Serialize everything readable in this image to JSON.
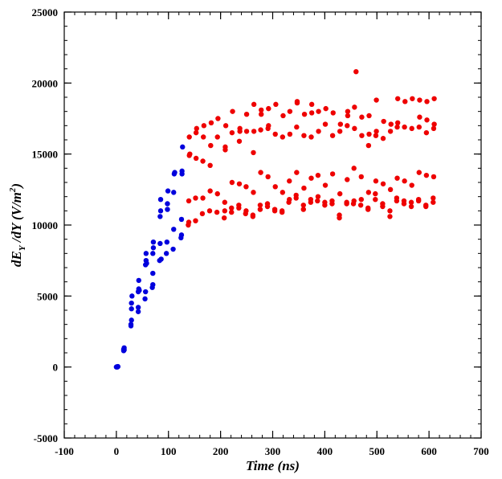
{
  "chart_data": {
    "type": "scatter",
    "title": "",
    "xlabel": "Time (ns)",
    "ylabel_parts": {
      "base": "dE",
      "sub": "Y",
      "mid": " /dY (V/m",
      "sup": "2",
      "end": ")"
    },
    "xlim": [
      -100,
      700
    ],
    "ylim": [
      -5000,
      25000
    ],
    "x_ticks": [
      -100,
      0,
      100,
      200,
      300,
      400,
      500,
      600,
      700
    ],
    "y_ticks": [
      -5000,
      0,
      5000,
      10000,
      15000,
      20000,
      25000
    ],
    "x_minor_step": 20,
    "y_minor_step": 1000,
    "grid": false,
    "legend": "none",
    "series": [
      {
        "color": "#0000dd",
        "points": [
          [
            0,
            0
          ],
          [
            1,
            20
          ],
          [
            2,
            0
          ],
          [
            3,
            30
          ],
          [
            14,
            1150
          ],
          [
            14,
            1250
          ],
          [
            15,
            1350
          ],
          [
            15,
            1200
          ],
          [
            28,
            2900
          ],
          [
            29,
            3300
          ],
          [
            29,
            4100
          ],
          [
            29,
            4500
          ],
          [
            30,
            5000
          ],
          [
            28,
            3000
          ],
          [
            42,
            3900
          ],
          [
            42,
            4200
          ],
          [
            42,
            5300
          ],
          [
            43,
            5500
          ],
          [
            43,
            6100
          ],
          [
            44,
            5400
          ],
          [
            55,
            4800
          ],
          [
            56,
            5300
          ],
          [
            56,
            7200
          ],
          [
            57,
            7500
          ],
          [
            57,
            8000
          ],
          [
            58,
            7300
          ],
          [
            69,
            5600
          ],
          [
            70,
            5800
          ],
          [
            70,
            6600
          ],
          [
            70,
            8000
          ],
          [
            71,
            8400
          ],
          [
            71,
            8800
          ],
          [
            83,
            7500
          ],
          [
            84,
            8700
          ],
          [
            84,
            10600
          ],
          [
            85,
            11000
          ],
          [
            85,
            11800
          ],
          [
            86,
            7600
          ],
          [
            96,
            8000
          ],
          [
            97,
            8800
          ],
          [
            98,
            11100
          ],
          [
            98,
            11500
          ],
          [
            99,
            12400
          ],
          [
            109,
            8300
          ],
          [
            110,
            9700
          ],
          [
            110,
            12300
          ],
          [
            111,
            13600
          ],
          [
            112,
            13700
          ],
          [
            124,
            9100
          ],
          [
            125,
            9300
          ],
          [
            125,
            10400
          ],
          [
            126,
            13600
          ],
          [
            126,
            13800
          ],
          [
            127,
            15500
          ]
        ]
      },
      {
        "color": "#ee0000",
        "points": [
          [
            138,
            10000
          ],
          [
            139,
            10200
          ],
          [
            139,
            11700
          ],
          [
            140,
            14900
          ],
          [
            141,
            15000
          ],
          [
            140,
            16200
          ],
          [
            152,
            10300
          ],
          [
            152,
            11900
          ],
          [
            153,
            14700
          ],
          [
            153,
            16500
          ],
          [
            154,
            16800
          ],
          [
            165,
            10800
          ],
          [
            166,
            11900
          ],
          [
            166,
            14500
          ],
          [
            167,
            16200
          ],
          [
            168,
            17000
          ],
          [
            179,
            11000
          ],
          [
            180,
            12400
          ],
          [
            180,
            14200
          ],
          [
            181,
            15600
          ],
          [
            182,
            17200
          ],
          [
            193,
            10900
          ],
          [
            194,
            12200
          ],
          [
            194,
            16200
          ],
          [
            195,
            17500
          ],
          [
            207,
            10500
          ],
          [
            208,
            11000
          ],
          [
            208,
            11600
          ],
          [
            209,
            15300
          ],
          [
            209,
            15500
          ],
          [
            210,
            17000
          ],
          [
            221,
            10900
          ],
          [
            221,
            11200
          ],
          [
            222,
            13000
          ],
          [
            222,
            16500
          ],
          [
            223,
            18000
          ],
          [
            235,
            11200
          ],
          [
            235,
            11400
          ],
          [
            236,
            12900
          ],
          [
            236,
            15900
          ],
          [
            237,
            16600
          ],
          [
            237,
            16800
          ],
          [
            248,
            10800
          ],
          [
            249,
            11000
          ],
          [
            249,
            12700
          ],
          [
            250,
            16600
          ],
          [
            250,
            17800
          ],
          [
            262,
            10600
          ],
          [
            262,
            10700
          ],
          [
            263,
            12300
          ],
          [
            263,
            15100
          ],
          [
            264,
            16600
          ],
          [
            264,
            18500
          ],
          [
            276,
            11100
          ],
          [
            276,
            11400
          ],
          [
            277,
            13700
          ],
          [
            277,
            16700
          ],
          [
            278,
            17800
          ],
          [
            278,
            18100
          ],
          [
            290,
            11300
          ],
          [
            290,
            11500
          ],
          [
            291,
            13400
          ],
          [
            291,
            16800
          ],
          [
            292,
            17000
          ],
          [
            292,
            18200
          ],
          [
            304,
            11000
          ],
          [
            304,
            11100
          ],
          [
            305,
            12700
          ],
          [
            305,
            16400
          ],
          [
            306,
            18500
          ],
          [
            318,
            10900
          ],
          [
            318,
            11000
          ],
          [
            319,
            12300
          ],
          [
            319,
            16200
          ],
          [
            320,
            17700
          ],
          [
            331,
            11600
          ],
          [
            332,
            11800
          ],
          [
            332,
            13100
          ],
          [
            333,
            16400
          ],
          [
            333,
            18000
          ],
          [
            345,
            11900
          ],
          [
            345,
            12100
          ],
          [
            346,
            13700
          ],
          [
            346,
            16900
          ],
          [
            347,
            18600
          ],
          [
            347,
            18700
          ],
          [
            359,
            11100
          ],
          [
            359,
            11400
          ],
          [
            360,
            12600
          ],
          [
            360,
            16300
          ],
          [
            361,
            17800
          ],
          [
            373,
            11600
          ],
          [
            373,
            11800
          ],
          [
            374,
            13300
          ],
          [
            374,
            16200
          ],
          [
            375,
            17900
          ],
          [
            375,
            18500
          ],
          [
            386,
            11700
          ],
          [
            387,
            12000
          ],
          [
            387,
            13500
          ],
          [
            388,
            16600
          ],
          [
            388,
            18000
          ],
          [
            400,
            11400
          ],
          [
            400,
            11600
          ],
          [
            401,
            12800
          ],
          [
            401,
            17100
          ],
          [
            402,
            18200
          ],
          [
            414,
            11500
          ],
          [
            414,
            11700
          ],
          [
            415,
            13600
          ],
          [
            415,
            16300
          ],
          [
            416,
            17900
          ],
          [
            428,
            10500
          ],
          [
            428,
            10700
          ],
          [
            429,
            12200
          ],
          [
            429,
            16600
          ],
          [
            430,
            17100
          ],
          [
            442,
            11500
          ],
          [
            442,
            11600
          ],
          [
            443,
            13200
          ],
          [
            443,
            17000
          ],
          [
            444,
            17700
          ],
          [
            444,
            18000
          ],
          [
            455,
            11500
          ],
          [
            456,
            11700
          ],
          [
            456,
            14000
          ],
          [
            457,
            16800
          ],
          [
            457,
            18300
          ],
          [
            460,
            20800
          ],
          [
            469,
            11400
          ],
          [
            470,
            11800
          ],
          [
            470,
            13400
          ],
          [
            471,
            16300
          ],
          [
            471,
            17600
          ],
          [
            483,
            11100
          ],
          [
            483,
            11200
          ],
          [
            484,
            12300
          ],
          [
            484,
            15600
          ],
          [
            485,
            16400
          ],
          [
            485,
            17700
          ],
          [
            497,
            11800
          ],
          [
            497,
            12200
          ],
          [
            498,
            13100
          ],
          [
            498,
            16300
          ],
          [
            499,
            16600
          ],
          [
            499,
            18800
          ],
          [
            511,
            11300
          ],
          [
            511,
            11500
          ],
          [
            512,
            12900
          ],
          [
            512,
            16100
          ],
          [
            513,
            17300
          ],
          [
            525,
            10600
          ],
          [
            525,
            11000
          ],
          [
            526,
            12500
          ],
          [
            526,
            16600
          ],
          [
            527,
            17100
          ],
          [
            538,
            11700
          ],
          [
            538,
            11900
          ],
          [
            539,
            13300
          ],
          [
            539,
            16900
          ],
          [
            540,
            17200
          ],
          [
            540,
            18900
          ],
          [
            552,
            11500
          ],
          [
            552,
            11700
          ],
          [
            553,
            13100
          ],
          [
            553,
            16900
          ],
          [
            554,
            18700
          ],
          [
            566,
            11300
          ],
          [
            566,
            11600
          ],
          [
            567,
            12800
          ],
          [
            567,
            16800
          ],
          [
            568,
            18900
          ],
          [
            580,
            11700
          ],
          [
            580,
            11800
          ],
          [
            581,
            13700
          ],
          [
            581,
            16900
          ],
          [
            582,
            17600
          ],
          [
            582,
            18800
          ],
          [
            594,
            11300
          ],
          [
            594,
            11400
          ],
          [
            595,
            13500
          ],
          [
            595,
            16500
          ],
          [
            596,
            17400
          ],
          [
            596,
            18700
          ],
          [
            608,
            11600
          ],
          [
            608,
            11900
          ],
          [
            609,
            13400
          ],
          [
            609,
            16800
          ],
          [
            610,
            17100
          ],
          [
            610,
            18900
          ]
        ]
      }
    ]
  }
}
